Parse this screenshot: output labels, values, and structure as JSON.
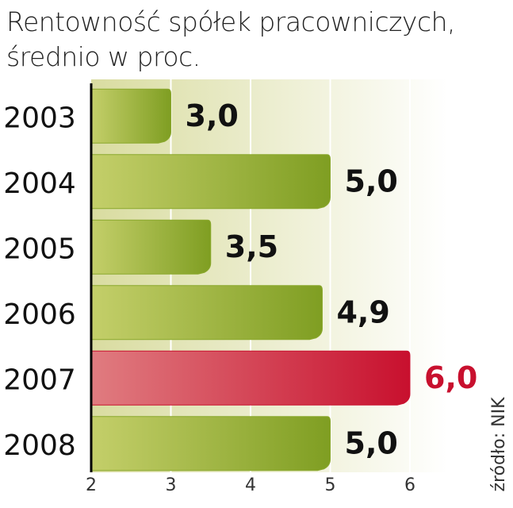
{
  "chart_data": {
    "type": "barh",
    "title": "Rentowność spółek pracowniczych, średnio w proc.",
    "categories": [
      "2003",
      "2004",
      "2005",
      "2006",
      "2007",
      "2008"
    ],
    "values": [
      3.0,
      5.0,
      3.5,
      4.9,
      6.0,
      5.0
    ],
    "value_labels": [
      "3,0",
      "5,0",
      "3,5",
      "4,9",
      "6,0",
      "5,0"
    ],
    "colors": [
      "#8aa82c",
      "#8aa82c",
      "#8aa82c",
      "#8aa82c",
      "#c8102e",
      "#8aa82c"
    ],
    "xlim": [
      2,
      6
    ],
    "xticks": [
      2,
      3,
      4,
      5,
      6
    ],
    "grid": true,
    "source": "źródło: NIK"
  }
}
